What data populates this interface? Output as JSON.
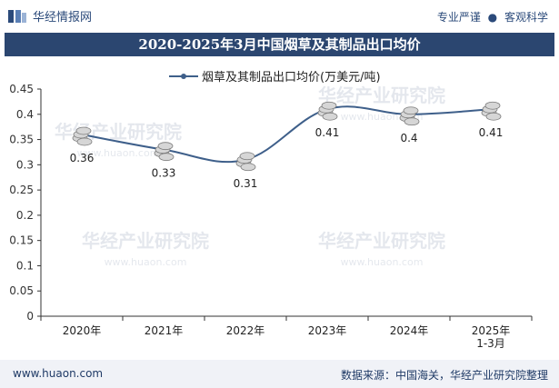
{
  "header": {
    "brand": "华经情报网",
    "slogan_left": "专业严谨",
    "slogan_right": "客观科学"
  },
  "watermark": {
    "cn": "华经产业研究院",
    "en": "www.huaon.com"
  },
  "footer": {
    "website": "www.huaon.com",
    "source": "数据来源：中国海关，华经产业研究院整理"
  },
  "colors": {
    "title_bg": "#2b4670",
    "line": "#3e5f8a",
    "marker": "#c8c8c8"
  },
  "chart_data": {
    "type": "line",
    "title": "2020-2025年3月中国烟草及其制品出口均价",
    "categories": [
      "2020年",
      "2021年",
      "2022年",
      "2023年",
      "2024年",
      "2025年\n1-3月"
    ],
    "series": [
      {
        "name": "烟草及其制品出口均价(万美元/吨)",
        "values": [
          0.36,
          0.33,
          0.31,
          0.41,
          0.4,
          0.41
        ]
      }
    ],
    "data_labels": [
      "0.36",
      "0.33",
      "0.31",
      "0.41",
      "0.4",
      "0.41"
    ],
    "y_ticks": [
      "0",
      "0.05",
      "0.1",
      "0.15",
      "0.2",
      "0.25",
      "0.3",
      "0.35",
      "0.4",
      "0.45"
    ],
    "ylim": [
      0,
      0.45
    ],
    "xlabel": "",
    "ylabel": "",
    "legend_position": "top-center"
  }
}
